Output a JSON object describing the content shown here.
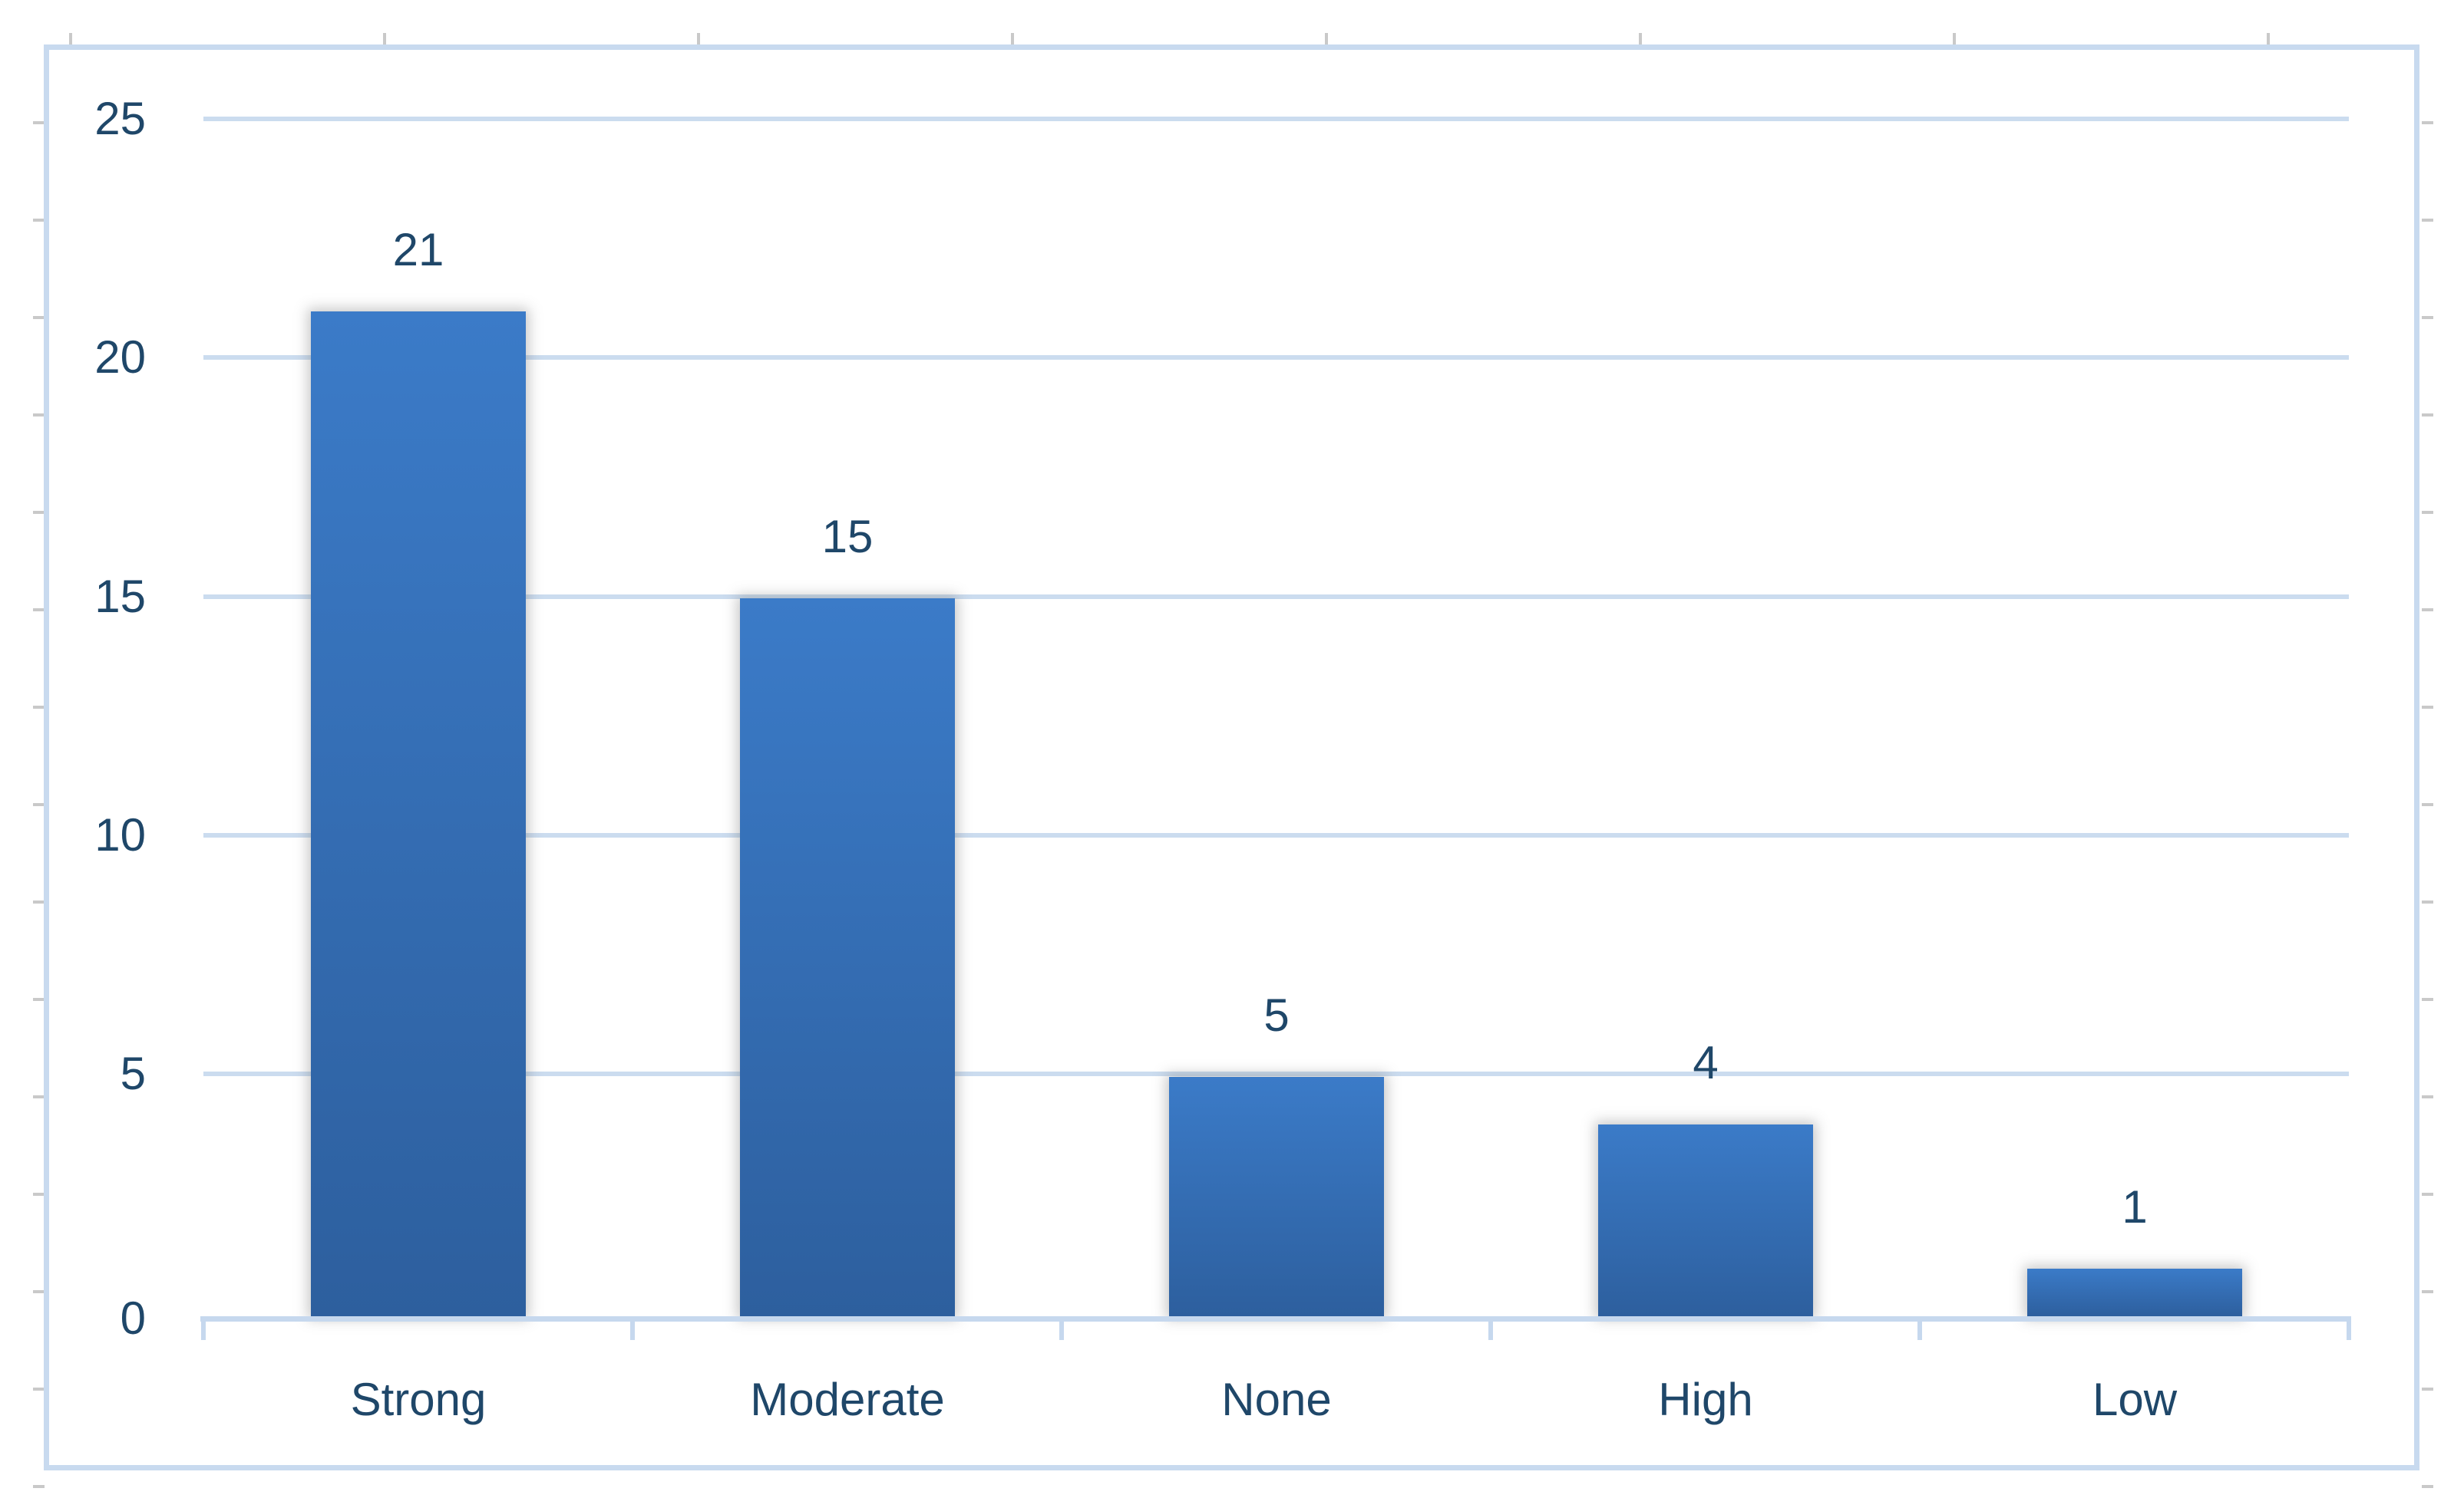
{
  "chart_data": {
    "type": "bar",
    "categories": [
      "Strong",
      "Moderate",
      "None",
      "High",
      "Low"
    ],
    "values": [
      21,
      15,
      5,
      4,
      1
    ],
    "data_labels": [
      "21",
      "15",
      "5",
      "4",
      "1"
    ],
    "title": "",
    "xlabel": "",
    "ylabel": "",
    "ylim": [
      0,
      25
    ],
    "y_ticks": [
      "25",
      "20",
      "15",
      "10",
      "5",
      "0"
    ],
    "grid": true,
    "legend": false,
    "colors": {
      "bar-top": "#3b7bc8",
      "bar-bottom": "#2d5f9e",
      "label": "#1f4769",
      "grid": "#cbdcef",
      "axis": "#c6d8ee",
      "frame-border": "#c8daef",
      "stub": "#c9c9c9"
    }
  }
}
